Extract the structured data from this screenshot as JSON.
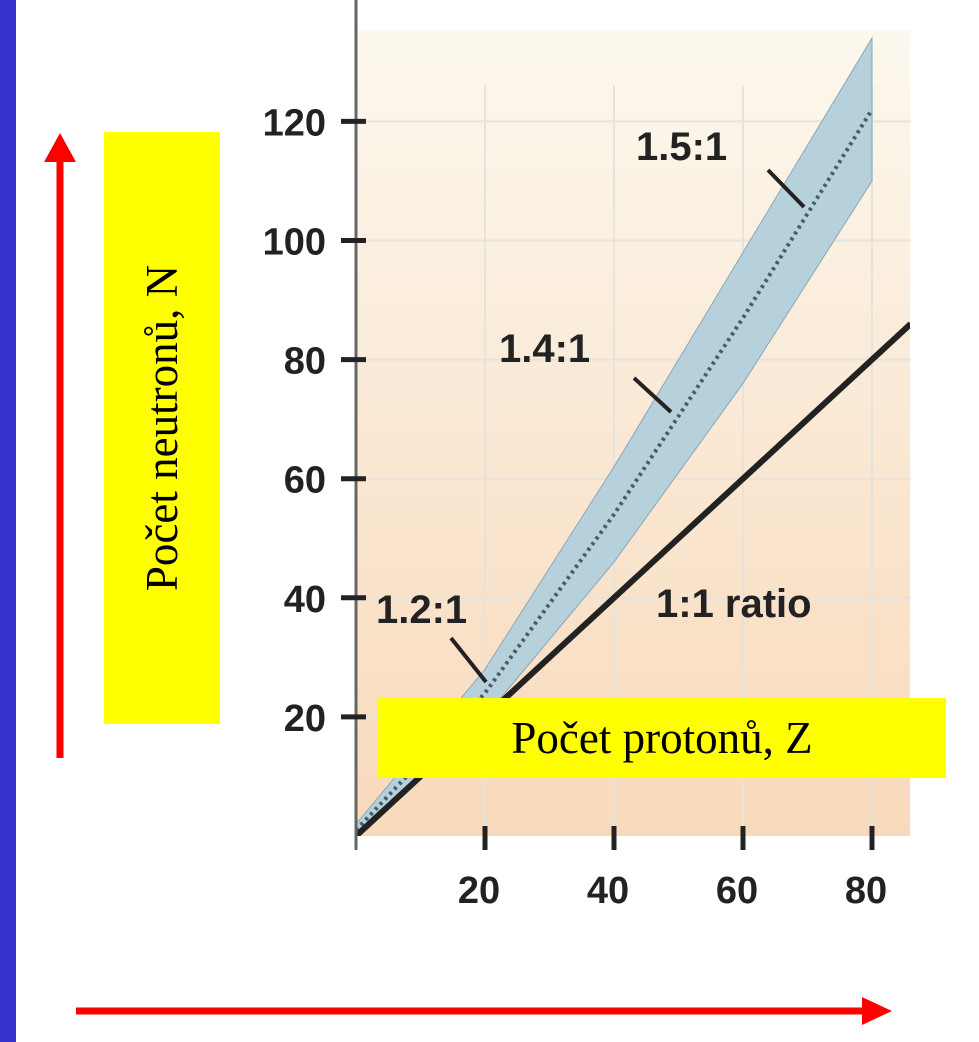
{
  "chart_data": {
    "type": "line",
    "title": "",
    "xlabel": "Počet protonů, Z",
    "ylabel": "Počet neutronů, N",
    "xlim": [
      0,
      86
    ],
    "ylim": [
      0,
      126
    ],
    "x_ticks": [
      20,
      40,
      60,
      80
    ],
    "y_ticks": [
      20,
      40,
      60,
      80,
      100,
      120
    ],
    "grid": true,
    "series": [
      {
        "name": "1:1 ratio",
        "x": [
          0,
          86
        ],
        "y": [
          0,
          86
        ]
      }
    ],
    "stability_band": {
      "lower": {
        "x": [
          0,
          20,
          40,
          60,
          80
        ],
        "y": [
          0,
          20,
          46,
          76,
          110
        ]
      },
      "upper": {
        "x": [
          0,
          20,
          40,
          60,
          80
        ],
        "y": [
          2,
          28,
          62,
          98,
          134
        ]
      }
    },
    "annotations": [
      {
        "text": "1.2:1",
        "x": 20,
        "y": 24
      },
      {
        "text": "1.4:1",
        "x": 47,
        "y": 67
      },
      {
        "text": "1.5:1",
        "x": 69,
        "y": 103
      }
    ],
    "colors": {
      "background": "#3333cc",
      "slide": "#ffffff",
      "plot_bg_top": "#fcf8ee",
      "plot_bg_bottom": "#f8d9bb",
      "band": "#b6d0dc",
      "line": "#222222",
      "label_box": "#ffff00",
      "arrow": "#ff0000"
    }
  }
}
